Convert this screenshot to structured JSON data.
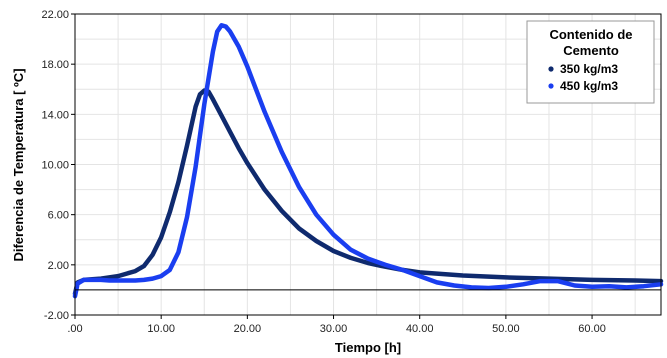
{
  "chart_data": {
    "type": "line",
    "title": "",
    "xlabel": "Tiempo [h]",
    "ylabel": "Diferencia de Temperatura [ ºC]",
    "xlim": [
      0,
      68
    ],
    "ylim": [
      -2,
      22
    ],
    "x_ticks": [
      0,
      10,
      20,
      30,
      40,
      50,
      60
    ],
    "x_tick_labels": [
      ".00",
      "10.00",
      "20.00",
      "30.00",
      "40.00",
      "50.00",
      "60.00"
    ],
    "y_ticks": [
      -2,
      2,
      6,
      10,
      14,
      18,
      22
    ],
    "y_tick_labels": [
      "-2.00",
      "2.00",
      "6.00",
      "10.00",
      "14.00",
      "18.00",
      "22.00"
    ],
    "grid": true,
    "legend": {
      "placement": "top-right",
      "title_lines": [
        "Contenido de",
        "Cemento"
      ]
    },
    "series": [
      {
        "name": "350 kg/m3",
        "color": "#0f2a6e",
        "x": [
          0,
          0.3,
          1,
          2,
          3,
          4,
          5,
          6,
          7,
          8,
          9,
          10,
          11,
          12,
          13,
          14,
          14.5,
          15,
          15.5,
          16,
          17,
          18,
          19,
          20,
          22,
          24,
          26,
          28,
          30,
          32,
          34,
          36,
          38,
          40,
          42,
          45,
          50,
          55,
          60,
          65,
          68
        ],
        "y": [
          -0.3,
          0.6,
          0.8,
          0.85,
          0.9,
          1.0,
          1.1,
          1.3,
          1.5,
          1.9,
          2.8,
          4.2,
          6.2,
          8.6,
          11.5,
          14.6,
          15.6,
          15.9,
          15.8,
          15.2,
          13.9,
          12.6,
          11.3,
          10.1,
          8.0,
          6.3,
          4.9,
          3.9,
          3.1,
          2.55,
          2.15,
          1.85,
          1.6,
          1.4,
          1.3,
          1.15,
          1.0,
          0.9,
          0.8,
          0.75,
          0.7
        ]
      },
      {
        "name": "450 kg/m3",
        "color": "#1a3ef0",
        "x": [
          0,
          0.3,
          1,
          2,
          3,
          4,
          5,
          6,
          7,
          8,
          9,
          10,
          11,
          12,
          13,
          14,
          15,
          16,
          16.5,
          17,
          17.5,
          18,
          19,
          20,
          21,
          22,
          24,
          26,
          28,
          30,
          32,
          34,
          36,
          38,
          40,
          42,
          44,
          46,
          48,
          50,
          52,
          54,
          56,
          58,
          60,
          62,
          64,
          66,
          68
        ],
        "y": [
          -0.5,
          0.5,
          0.8,
          0.8,
          0.8,
          0.75,
          0.75,
          0.75,
          0.75,
          0.8,
          0.9,
          1.1,
          1.6,
          3.0,
          5.8,
          9.8,
          14.8,
          19.0,
          20.6,
          21.1,
          21.0,
          20.6,
          19.4,
          17.8,
          16.0,
          14.2,
          11.0,
          8.2,
          6.0,
          4.4,
          3.2,
          2.5,
          2.0,
          1.6,
          1.1,
          0.6,
          0.35,
          0.2,
          0.15,
          0.25,
          0.45,
          0.7,
          0.7,
          0.35,
          0.25,
          0.3,
          0.2,
          0.3,
          0.45
        ]
      }
    ]
  }
}
